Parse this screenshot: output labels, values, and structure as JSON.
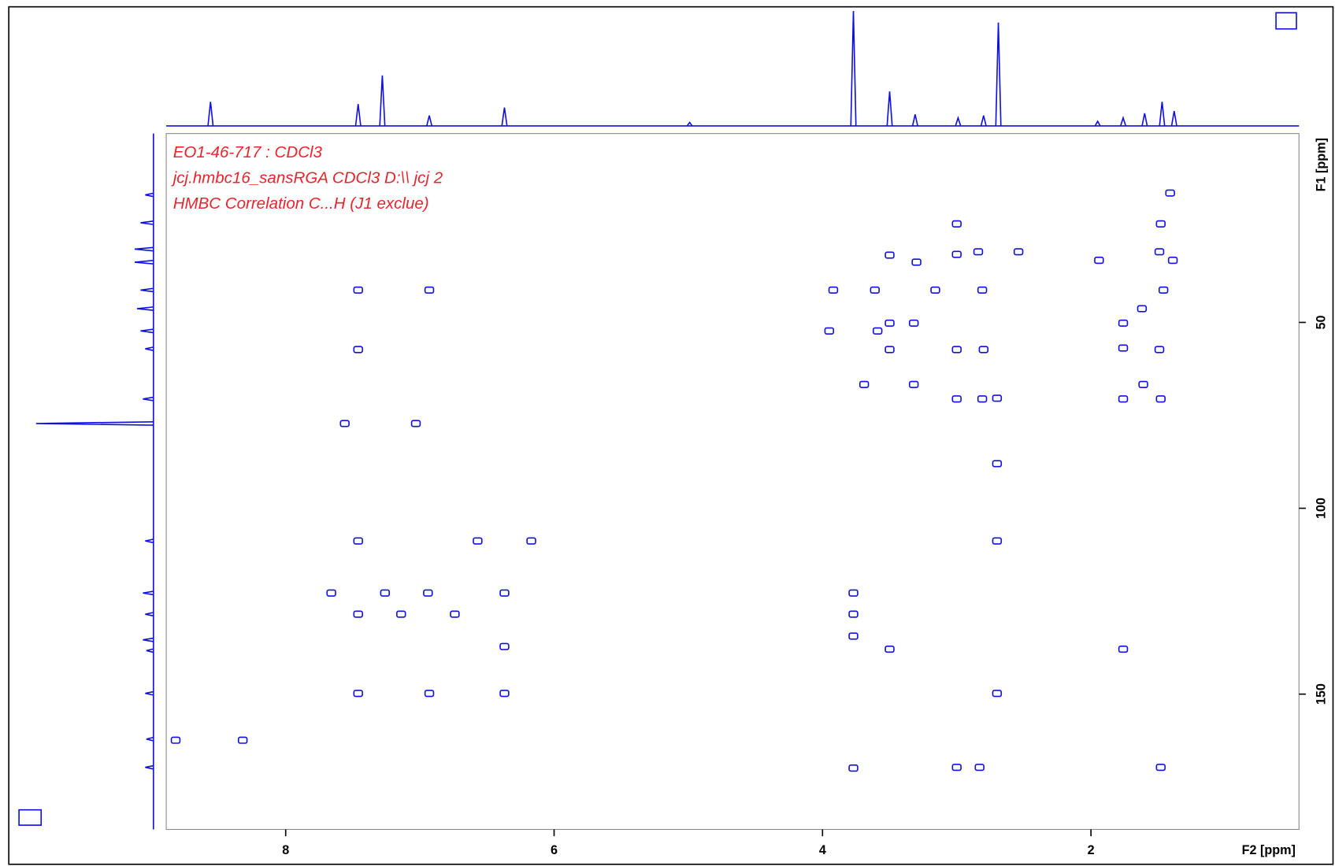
{
  "chart_data": {
    "type": "scatter",
    "annotations": [
      "EO1-46-717 : CDCl3",
      "jcj.hmbc16_sansRGA CDCl3 D:\\\\ jcj 2",
      "HMBC Correlation C...H (J1 exclue)"
    ],
    "xlabel": "F2 [ppm]",
    "ylabel": "F1 [ppm]",
    "xlim": [
      8.89,
      0.45
    ],
    "ylim": [
      -0.8,
      186.4
    ],
    "y_reversed": true,
    "xticks": [
      8,
      6,
      4,
      2
    ],
    "yticks": [
      50,
      100,
      150
    ],
    "color": "#1010e0",
    "x": [
      7.46,
      6.93,
      7.46,
      7.56,
      7.03,
      7.46,
      6.57,
      6.17,
      7.66,
      7.26,
      6.94,
      6.37,
      7.46,
      7.14,
      6.74,
      6.37,
      6.37,
      7.46,
      6.93,
      8.82,
      8.32,
      3.77,
      3.77,
      3.77,
      3.5,
      3.77,
      3.0,
      2.83,
      1.48,
      1.76,
      2.7,
      2.7,
      3.0,
      2.81,
      1.76,
      1.48,
      1.61,
      3.69,
      3.32,
      3.0,
      2.8,
      3.5,
      1.76,
      1.49,
      1.76,
      3.5,
      3.59,
      3.95,
      3.32,
      3.92,
      3.61,
      3.16,
      2.81,
      1.46,
      1.62,
      3.5,
      3.3,
      3.0,
      2.84,
      2.54,
      1.94,
      1.49,
      1.39,
      3.0,
      1.48,
      1.41,
      2.7,
      2.7
    ],
    "values": [
      41.3,
      41.3,
      57.3,
      77.2,
      77.2,
      108.8,
      108.8,
      108.8,
      122.8,
      122.8,
      122.8,
      122.8,
      128.5,
      128.5,
      128.5,
      137.2,
      149.8,
      149.8,
      149.8,
      162.4,
      162.4,
      122.8,
      128.5,
      134.4,
      137.9,
      169.9,
      169.7,
      169.7,
      169.7,
      137.9,
      149.8,
      70.4,
      70.6,
      70.6,
      70.6,
      70.6,
      66.7,
      66.7,
      66.7,
      57.3,
      57.3,
      57.3,
      56.9,
      57.3,
      50.2,
      50.2,
      52.3,
      52.3,
      50.2,
      41.3,
      41.3,
      41.3,
      41.3,
      41.3,
      46.3,
      31.9,
      33.8,
      31.7,
      31.0,
      31.0,
      33.3,
      31.0,
      33.3,
      23.5,
      23.5,
      15.2,
      88.0,
      108.8
    ],
    "f2_projection": {
      "x": [
        8.56,
        7.46,
        7.28,
        6.93,
        6.37,
        4.99,
        3.77,
        3.5,
        3.31,
        2.99,
        2.8,
        2.69,
        1.95,
        1.76,
        1.6,
        1.47,
        1.38
      ],
      "values": [
        21,
        19,
        44,
        9,
        16,
        3,
        100,
        30,
        10,
        7,
        9,
        90,
        4,
        7,
        11,
        21,
        13
      ]
    },
    "f1_projection": {
      "x": [
        15.7,
        23.2,
        30.3,
        33.8,
        41.3,
        46.3,
        52.3,
        57.1,
        70.6,
        77.2,
        108.8,
        122.8,
        128.5,
        135.4,
        138.3,
        149.8,
        162.1,
        169.7
      ],
      "values": [
        7,
        11,
        16,
        16,
        11,
        14,
        11,
        7,
        9,
        100,
        7,
        9,
        7,
        9,
        6,
        7,
        6,
        7
      ]
    }
  }
}
